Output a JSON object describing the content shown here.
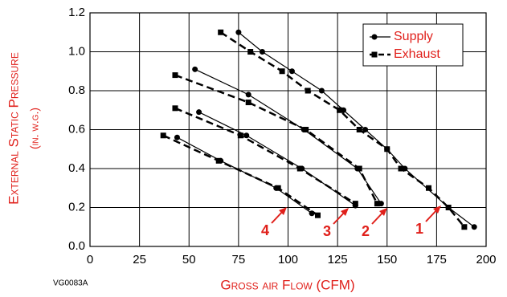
{
  "chart_data": {
    "type": "line",
    "x_label": "Gross air Flow (CFM)",
    "y_label": [
      "External Static Pressure",
      "(in. w.g.)"
    ],
    "figure_id": "VG0083A",
    "xlim": [
      0,
      200
    ],
    "xticks": [
      0,
      25,
      50,
      75,
      100,
      125,
      150,
      175,
      200
    ],
    "ylim": [
      0,
      1.2
    ],
    "yticks": [
      {
        "value": 0,
        "label": "0.0"
      },
      {
        "value": 0.2,
        "label": "0.2"
      },
      {
        "value": 0.4,
        "label": "0.4"
      },
      {
        "value": 0.6,
        "label": "0.6"
      },
      {
        "value": 0.8,
        "label": "0.8"
      },
      {
        "value": 1,
        "label": "1.0"
      },
      {
        "value": 1.2,
        "label": "1.2"
      }
    ],
    "grid": true,
    "curve_labels": [
      "1",
      "2",
      "3",
      "4"
    ],
    "series": [
      {
        "name": "Supply",
        "color": "#000000",
        "dashed": false,
        "marker": "circle",
        "curves": [
          {
            "x": [
              75,
              87,
              102,
              117,
              128,
              139,
              150,
              159,
              181,
              194
            ],
            "values": [
              1.1,
              1.0,
              0.9,
              0.8,
              0.7,
              0.6,
              0.5,
              0.4,
              0.2,
              0.1
            ]
          },
          {
            "x": [
              53,
              80,
              108,
              135,
              147
            ],
            "values": [
              0.91,
              0.78,
              0.6,
              0.4,
              0.22
            ]
          },
          {
            "x": [
              55,
              79,
              107,
              134
            ],
            "values": [
              0.69,
              0.57,
              0.4,
              0.21
            ]
          },
          {
            "x": [
              44,
              66,
              94,
              112
            ],
            "values": [
              0.56,
              0.44,
              0.3,
              0.17
            ]
          }
        ]
      },
      {
        "name": "Exhaust",
        "color": "#000000",
        "dashed": true,
        "marker": "square",
        "curves": [
          {
            "x": [
              66,
              81,
              97,
              110,
              126,
              136,
              150,
              157,
              171,
              181,
              189
            ],
            "values": [
              1.1,
              1.0,
              0.9,
              0.8,
              0.7,
              0.6,
              0.5,
              0.4,
              0.3,
              0.2,
              0.1
            ]
          },
          {
            "x": [
              43,
              80,
              109,
              136,
              145
            ],
            "values": [
              0.88,
              0.74,
              0.6,
              0.4,
              0.22
            ]
          },
          {
            "x": [
              43,
              76,
              106,
              134
            ],
            "values": [
              0.71,
              0.57,
              0.4,
              0.22
            ]
          },
          {
            "x": [
              37,
              65,
              95,
              115
            ],
            "values": [
              0.57,
              0.44,
              0.3,
              0.16
            ]
          }
        ]
      }
    ]
  }
}
